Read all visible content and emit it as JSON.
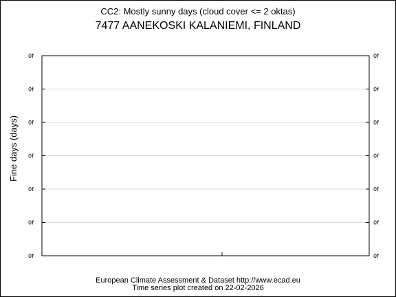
{
  "chart_data": {
    "type": "line",
    "title": "CC2: Mostly sunny days (cloud cover <= 2 oktas)",
    "subtitle": "7477 AANEKOSKI KALANIEMI, FINLAND",
    "ylabel": "Fine days (days)",
    "xlabel": "",
    "y_tick_labels": [
      "0f",
      "0f",
      "0f",
      "0f",
      "0f",
      "0f",
      "0f"
    ],
    "x_tick_labels": [],
    "series": [],
    "grid": true,
    "legend": "none"
  },
  "footer": {
    "line1": "European Climate Assessment & Dataset  http://www.ecad.eu",
    "line2": "Time series plot created on 22-02-2026"
  }
}
